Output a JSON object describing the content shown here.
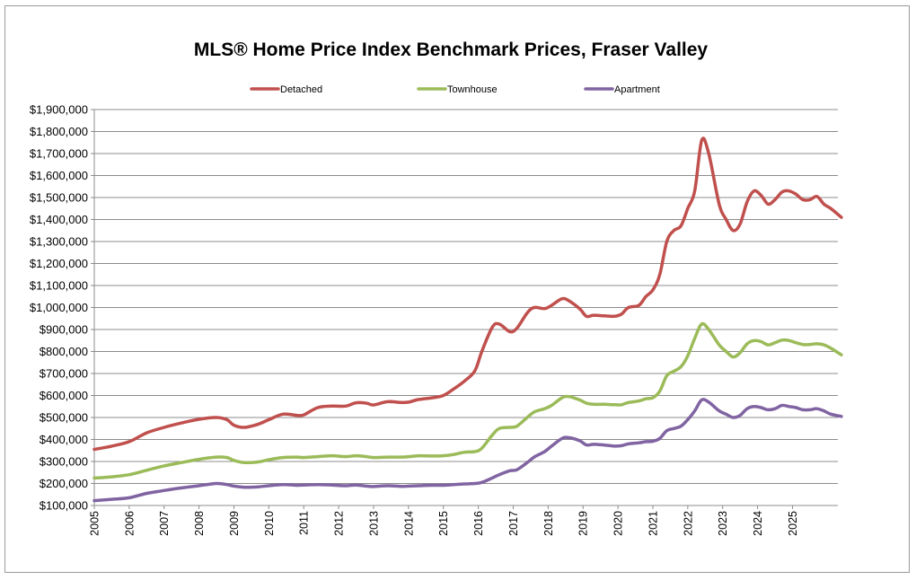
{
  "chart_data": {
    "type": "line",
    "title": "MLS® Home Price Index Benchmark Prices, Fraser Valley",
    "xlabel": "",
    "ylabel": "",
    "ylim": [
      100000,
      1900000
    ],
    "xlim": [
      2005,
      2025.8
    ],
    "grid": true,
    "legend_position": "top",
    "x_tick_labels": [
      "2005",
      "2006",
      "2007",
      "2008",
      "2009",
      "2010",
      "2011",
      "2012",
      "2013",
      "2014",
      "2015",
      "2016",
      "2017",
      "2018",
      "2019",
      "2020",
      "2021",
      "2022",
      "2023",
      "2024",
      "2025"
    ],
    "y_tick_labels": [
      "$100,000",
      "$200,000",
      "$300,000",
      "$400,000",
      "$500,000",
      "$600,000",
      "$700,000",
      "$800,000",
      "$900,000",
      "$1,000,000",
      "$1,100,000",
      "$1,200,000",
      "$1,300,000",
      "$1,400,000",
      "$1,500,000",
      "$1,600,000",
      "$1,700,000",
      "$1,800,000",
      "$1,900,000"
    ],
    "series": [
      {
        "name": "Detached",
        "color": "#c0504d",
        "points": [
          [
            2005.0,
            355000
          ],
          [
            2005.5,
            370000
          ],
          [
            2006.0,
            390000
          ],
          [
            2006.5,
            430000
          ],
          [
            2007.0,
            455000
          ],
          [
            2007.5,
            475000
          ],
          [
            2008.0,
            492000
          ],
          [
            2008.5,
            500000
          ],
          [
            2008.8,
            490000
          ],
          [
            2009.0,
            465000
          ],
          [
            2009.3,
            455000
          ],
          [
            2009.7,
            470000
          ],
          [
            2010.0,
            490000
          ],
          [
            2010.4,
            515000
          ],
          [
            2010.8,
            510000
          ],
          [
            2011.0,
            512000
          ],
          [
            2011.4,
            545000
          ],
          [
            2011.8,
            552000
          ],
          [
            2012.2,
            552000
          ],
          [
            2012.5,
            567000
          ],
          [
            2012.8,
            565000
          ],
          [
            2013.0,
            557000
          ],
          [
            2013.4,
            572000
          ],
          [
            2013.8,
            568000
          ],
          [
            2014.0,
            570000
          ],
          [
            2014.3,
            582000
          ],
          [
            2014.7,
            590000
          ],
          [
            2015.0,
            600000
          ],
          [
            2015.3,
            630000
          ],
          [
            2015.6,
            665000
          ],
          [
            2015.9,
            712000
          ],
          [
            2016.1,
            800000
          ],
          [
            2016.4,
            910000
          ],
          [
            2016.6,
            925000
          ],
          [
            2016.9,
            890000
          ],
          [
            2017.1,
            905000
          ],
          [
            2017.4,
            975000
          ],
          [
            2017.6,
            1000000
          ],
          [
            2017.9,
            995000
          ],
          [
            2018.1,
            1010000
          ],
          [
            2018.4,
            1040000
          ],
          [
            2018.6,
            1030000
          ],
          [
            2018.9,
            995000
          ],
          [
            2019.1,
            960000
          ],
          [
            2019.3,
            965000
          ],
          [
            2019.6,
            962000
          ],
          [
            2019.9,
            960000
          ],
          [
            2020.1,
            970000
          ],
          [
            2020.3,
            1000000
          ],
          [
            2020.6,
            1010000
          ],
          [
            2020.8,
            1050000
          ],
          [
            2021.0,
            1080000
          ],
          [
            2021.2,
            1150000
          ],
          [
            2021.4,
            1300000
          ],
          [
            2021.6,
            1350000
          ],
          [
            2021.8,
            1370000
          ],
          [
            2022.0,
            1450000
          ],
          [
            2022.2,
            1530000
          ],
          [
            2022.4,
            1760000
          ],
          [
            2022.6,
            1700000
          ],
          [
            2022.9,
            1470000
          ],
          [
            2023.1,
            1400000
          ],
          [
            2023.3,
            1350000
          ],
          [
            2023.5,
            1380000
          ],
          [
            2023.7,
            1480000
          ],
          [
            2023.9,
            1530000
          ],
          [
            2024.1,
            1510000
          ],
          [
            2024.3,
            1470000
          ],
          [
            2024.5,
            1490000
          ],
          [
            2024.7,
            1525000
          ],
          [
            2024.9,
            1530000
          ],
          [
            2025.1,
            1515000
          ],
          [
            2025.3,
            1490000
          ],
          [
            2025.5,
            1490000
          ],
          [
            2025.7,
            1505000
          ],
          [
            2025.9,
            1470000
          ],
          [
            2026.1,
            1450000
          ],
          [
            2026.4,
            1410000
          ]
        ]
      },
      {
        "name": "Townhouse",
        "color": "#9bbb59",
        "points": [
          [
            2005.0,
            225000
          ],
          [
            2005.5,
            230000
          ],
          [
            2006.0,
            240000
          ],
          [
            2006.5,
            260000
          ],
          [
            2007.0,
            280000
          ],
          [
            2007.5,
            295000
          ],
          [
            2008.0,
            310000
          ],
          [
            2008.5,
            320000
          ],
          [
            2008.8,
            318000
          ],
          [
            2009.0,
            305000
          ],
          [
            2009.3,
            295000
          ],
          [
            2009.7,
            298000
          ],
          [
            2010.0,
            308000
          ],
          [
            2010.4,
            318000
          ],
          [
            2010.8,
            320000
          ],
          [
            2011.0,
            318000
          ],
          [
            2011.4,
            322000
          ],
          [
            2011.8,
            326000
          ],
          [
            2012.2,
            322000
          ],
          [
            2012.5,
            326000
          ],
          [
            2012.8,
            322000
          ],
          [
            2013.0,
            318000
          ],
          [
            2013.4,
            320000
          ],
          [
            2013.8,
            320000
          ],
          [
            2014.0,
            322000
          ],
          [
            2014.3,
            326000
          ],
          [
            2014.7,
            325000
          ],
          [
            2015.0,
            326000
          ],
          [
            2015.3,
            332000
          ],
          [
            2015.6,
            342000
          ],
          [
            2015.9,
            345000
          ],
          [
            2016.1,
            360000
          ],
          [
            2016.4,
            420000
          ],
          [
            2016.6,
            450000
          ],
          [
            2016.9,
            455000
          ],
          [
            2017.1,
            460000
          ],
          [
            2017.4,
            500000
          ],
          [
            2017.6,
            525000
          ],
          [
            2017.9,
            540000
          ],
          [
            2018.1,
            555000
          ],
          [
            2018.4,
            590000
          ],
          [
            2018.6,
            595000
          ],
          [
            2018.9,
            580000
          ],
          [
            2019.1,
            565000
          ],
          [
            2019.3,
            560000
          ],
          [
            2019.6,
            560000
          ],
          [
            2019.9,
            558000
          ],
          [
            2020.1,
            558000
          ],
          [
            2020.3,
            568000
          ],
          [
            2020.6,
            575000
          ],
          [
            2020.8,
            585000
          ],
          [
            2021.0,
            590000
          ],
          [
            2021.2,
            620000
          ],
          [
            2021.4,
            690000
          ],
          [
            2021.6,
            710000
          ],
          [
            2021.8,
            730000
          ],
          [
            2022.0,
            780000
          ],
          [
            2022.2,
            860000
          ],
          [
            2022.4,
            925000
          ],
          [
            2022.6,
            900000
          ],
          [
            2022.9,
            830000
          ],
          [
            2023.1,
            800000
          ],
          [
            2023.3,
            775000
          ],
          [
            2023.5,
            795000
          ],
          [
            2023.7,
            835000
          ],
          [
            2023.9,
            850000
          ],
          [
            2024.1,
            845000
          ],
          [
            2024.3,
            830000
          ],
          [
            2024.5,
            840000
          ],
          [
            2024.7,
            852000
          ],
          [
            2024.9,
            850000
          ],
          [
            2025.1,
            840000
          ],
          [
            2025.3,
            832000
          ],
          [
            2025.5,
            832000
          ],
          [
            2025.7,
            835000
          ],
          [
            2025.9,
            830000
          ],
          [
            2026.1,
            815000
          ],
          [
            2026.4,
            785000
          ]
        ]
      },
      {
        "name": "Apartment",
        "color": "#8064a2",
        "points": [
          [
            2005.0,
            122000
          ],
          [
            2005.5,
            128000
          ],
          [
            2006.0,
            135000
          ],
          [
            2006.5,
            155000
          ],
          [
            2007.0,
            168000
          ],
          [
            2007.5,
            180000
          ],
          [
            2008.0,
            190000
          ],
          [
            2008.5,
            200000
          ],
          [
            2008.8,
            195000
          ],
          [
            2009.0,
            188000
          ],
          [
            2009.3,
            183000
          ],
          [
            2009.7,
            185000
          ],
          [
            2010.0,
            190000
          ],
          [
            2010.4,
            195000
          ],
          [
            2010.8,
            192000
          ],
          [
            2011.0,
            193000
          ],
          [
            2011.4,
            195000
          ],
          [
            2011.8,
            193000
          ],
          [
            2012.2,
            190000
          ],
          [
            2012.5,
            193000
          ],
          [
            2012.8,
            188000
          ],
          [
            2013.0,
            186000
          ],
          [
            2013.4,
            190000
          ],
          [
            2013.8,
            187000
          ],
          [
            2014.0,
            188000
          ],
          [
            2014.3,
            190000
          ],
          [
            2014.7,
            192000
          ],
          [
            2015.0,
            192000
          ],
          [
            2015.3,
            195000
          ],
          [
            2015.6,
            198000
          ],
          [
            2015.9,
            200000
          ],
          [
            2016.1,
            205000
          ],
          [
            2016.4,
            225000
          ],
          [
            2016.6,
            240000
          ],
          [
            2016.9,
            258000
          ],
          [
            2017.1,
            262000
          ],
          [
            2017.4,
            295000
          ],
          [
            2017.6,
            320000
          ],
          [
            2017.9,
            345000
          ],
          [
            2018.1,
            370000
          ],
          [
            2018.4,
            405000
          ],
          [
            2018.6,
            408000
          ],
          [
            2018.9,
            395000
          ],
          [
            2019.1,
            375000
          ],
          [
            2019.3,
            378000
          ],
          [
            2019.6,
            375000
          ],
          [
            2019.9,
            370000
          ],
          [
            2020.1,
            372000
          ],
          [
            2020.3,
            380000
          ],
          [
            2020.6,
            385000
          ],
          [
            2020.8,
            390000
          ],
          [
            2021.0,
            392000
          ],
          [
            2021.2,
            405000
          ],
          [
            2021.4,
            440000
          ],
          [
            2021.6,
            450000
          ],
          [
            2021.8,
            460000
          ],
          [
            2022.0,
            490000
          ],
          [
            2022.2,
            530000
          ],
          [
            2022.4,
            580000
          ],
          [
            2022.6,
            570000
          ],
          [
            2022.9,
            530000
          ],
          [
            2023.1,
            515000
          ],
          [
            2023.3,
            500000
          ],
          [
            2023.5,
            510000
          ],
          [
            2023.7,
            540000
          ],
          [
            2023.9,
            550000
          ],
          [
            2024.1,
            545000
          ],
          [
            2024.3,
            535000
          ],
          [
            2024.5,
            540000
          ],
          [
            2024.7,
            555000
          ],
          [
            2024.9,
            550000
          ],
          [
            2025.1,
            545000
          ],
          [
            2025.3,
            535000
          ],
          [
            2025.5,
            535000
          ],
          [
            2025.7,
            540000
          ],
          [
            2025.9,
            530000
          ],
          [
            2026.1,
            515000
          ],
          [
            2026.4,
            505000
          ]
        ]
      }
    ]
  }
}
